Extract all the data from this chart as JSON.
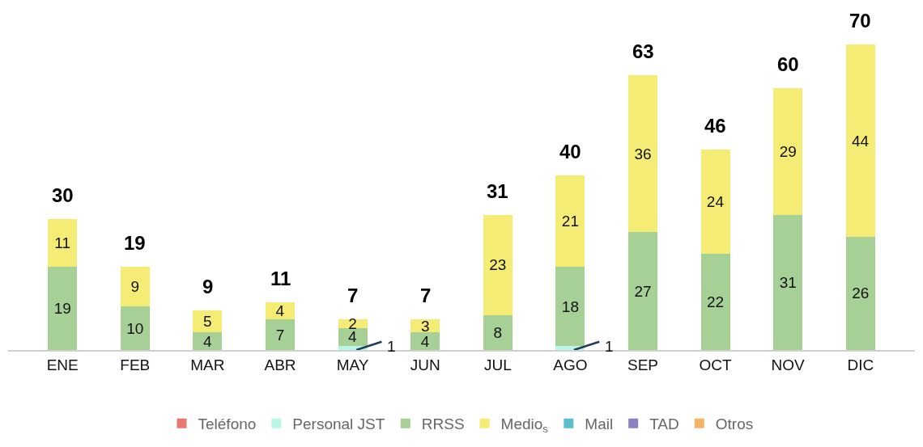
{
  "chart_data": {
    "type": "bar",
    "stacked": true,
    "data_labels": true,
    "legend": "bottom",
    "categories": [
      "ENE",
      "FEB",
      "MAR",
      "ABR",
      "MAY",
      "JUN",
      "JUL",
      "AGO",
      "SEP",
      "OCT",
      "NOV",
      "DIC"
    ],
    "series": [
      {
        "name": "Teléfono",
        "color": "#ec7770",
        "values": [
          null,
          null,
          null,
          null,
          null,
          null,
          null,
          null,
          null,
          null,
          null,
          null
        ]
      },
      {
        "name": "Personal JST",
        "color": "#b8f7e6",
        "values": [
          null,
          null,
          null,
          null,
          1,
          null,
          null,
          1,
          null,
          null,
          null,
          null
        ]
      },
      {
        "name": "RRSS",
        "color": "#a6d096",
        "values": [
          19,
          10,
          4,
          7,
          4,
          4,
          8,
          18,
          27,
          22,
          31,
          26
        ]
      },
      {
        "name": "Medio$_{s}$",
        "color": "#f4ec74",
        "values": [
          11,
          9,
          5,
          4,
          2,
          3,
          23,
          21,
          36,
          24,
          29,
          44
        ]
      },
      {
        "name": "Mail",
        "color": "#5bbfcc",
        "values": [
          null,
          null,
          null,
          null,
          null,
          null,
          null,
          null,
          null,
          null,
          null,
          null
        ]
      },
      {
        "name": "TAD",
        "color": "#8c80c0",
        "values": [
          null,
          null,
          null,
          null,
          null,
          null,
          null,
          null,
          null,
          null,
          null,
          null
        ]
      },
      {
        "name": "Otros",
        "color": "#f5b366",
        "values": [
          null,
          null,
          null,
          null,
          null,
          null,
          null,
          null,
          null,
          null,
          null,
          null
        ]
      }
    ],
    "totals": [
      "30",
      "19",
      "9",
      "11",
      "7",
      "7",
      "31",
      "40",
      "63",
      "46",
      "60",
      "70"
    ]
  }
}
